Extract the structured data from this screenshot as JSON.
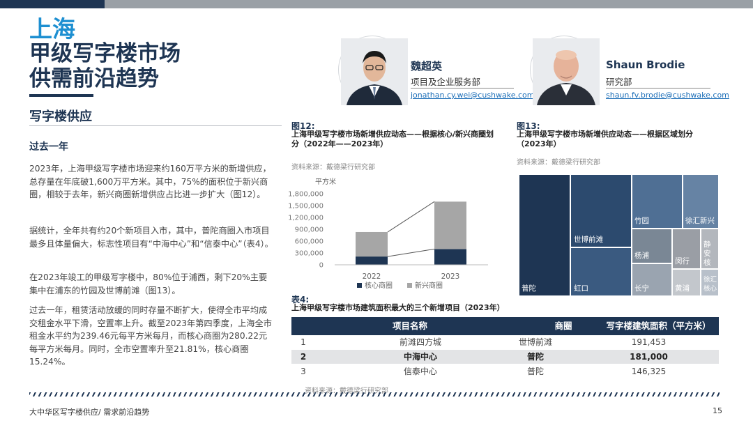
{
  "title": {
    "city": "上海",
    "line2": "甲级写字楼市场",
    "line3": "供需前沿趋势"
  },
  "section": {
    "heading": "写字楼供应",
    "subheading": "过去一年",
    "paragraphs": [
      "2023年，上海甲级写字楼市场迎来约160万平方米的新增供应，总存量在年底破1,600万平方米。其中，75%的面积位于新兴商圈，相较于去年，新兴商圈新增供应占比进一步扩大（图12）。",
      "据统计，全年共有约20个新项目入市，其中，普陀商圈入市项目最多且体量偏大，标志性项目有“中海中心”和“信泰中心”（表4）。",
      "在2023年竣工的甲级写字楼中，80%位于浦西，剩下20%主要集中在浦东的竹园及世博前滩（图13）。",
      "过去一年，租赁活动放缓的同时存量不断扩大，使得全市平均成交租金水平下滑，空置率上升。截至2023年第四季度，上海全市租金水平约为239.46元每平方米每月，而核心商圈为280.22元每平方米每月。同时，全市空置率升至21.81%，核心商圈15.24%。"
    ]
  },
  "profiles": [
    {
      "name": "魏超英",
      "dept": "项目及企业服务部",
      "email": "jonathan.cy.wei@cushwake.com"
    },
    {
      "name": "Shaun Brodie",
      "dept": "研究部",
      "email": "shaun.fv.brodie@cushwake.com"
    }
  ],
  "fig12": {
    "label": "图12:",
    "title": "上海甲级写字楼市场新增供应动态——根据核心/新兴商圈划分（2022年——2023年）",
    "source": "资料来源：戴德梁行研究部"
  },
  "fig13": {
    "label": "图13:",
    "title": "上海甲级写字楼市场新增供应动态——根据区域划分（2023年）",
    "source": "资料来源：戴德梁行研究部"
  },
  "chart_data": {
    "type": "bar",
    "stacked": true,
    "ylabel": "平方米",
    "ylim": [
      0,
      1800000
    ],
    "yticks": [
      "1,800,000",
      "1,500,000",
      "1,200,000",
      "900,000",
      "600,000",
      "300,000",
      "0"
    ],
    "tickvalues": [
      1800000,
      1500000,
      1200000,
      900000,
      600000,
      300000,
      0
    ],
    "categories": [
      "2022",
      "2023"
    ],
    "series": [
      {
        "name": "核心商圈",
        "color": "#1e3553",
        "values": [
          210000,
          400000
        ]
      },
      {
        "name": "新兴商圈",
        "color": "#a6a6a6",
        "values": [
          620000,
          1200000
        ]
      }
    ],
    "legend": "bottom"
  },
  "treemap": {
    "cells": [
      {
        "label": "普陀",
        "color": "#1e3553"
      },
      {
        "label": "世博前滩",
        "color": "#2c4a6e"
      },
      {
        "label": "虹口",
        "color": "#3a5a80"
      },
      {
        "label": "竹园",
        "color": "#4f6f94"
      },
      {
        "label": "徐汇新兴",
        "color": "#6683a4"
      },
      {
        "label": "杨浦",
        "color": "#7a8795"
      },
      {
        "label": "长宁",
        "color": "#9aa4b0"
      },
      {
        "label": "闵行",
        "color": "#9a9ea5"
      },
      {
        "label": "静安核",
        "color": "#b3b7bd"
      },
      {
        "label": "黄浦",
        "color": "#c3c7cc"
      },
      {
        "label": "徐汇核心",
        "color": "#b8c0ca"
      }
    ]
  },
  "table4": {
    "label": "表4:",
    "title": "上海甲级写字楼市场建筑面积最大的三个新增项目（2023年）",
    "headers": [
      "项目名称",
      "商圈",
      "写字楼建筑面积（平方米）"
    ],
    "rows": [
      [
        "1",
        "前滩四方城",
        "世博前滩",
        "191,453"
      ],
      [
        "2",
        "中海中心",
        "普陀",
        "181,000"
      ],
      [
        "3",
        "信泰中心",
        "普陀",
        "146,325"
      ]
    ],
    "source": "资料来源：戴德梁行研究部"
  },
  "footer": {
    "text": "大中华区写字楼供应/ 需求前沿趋势",
    "page": "15"
  }
}
